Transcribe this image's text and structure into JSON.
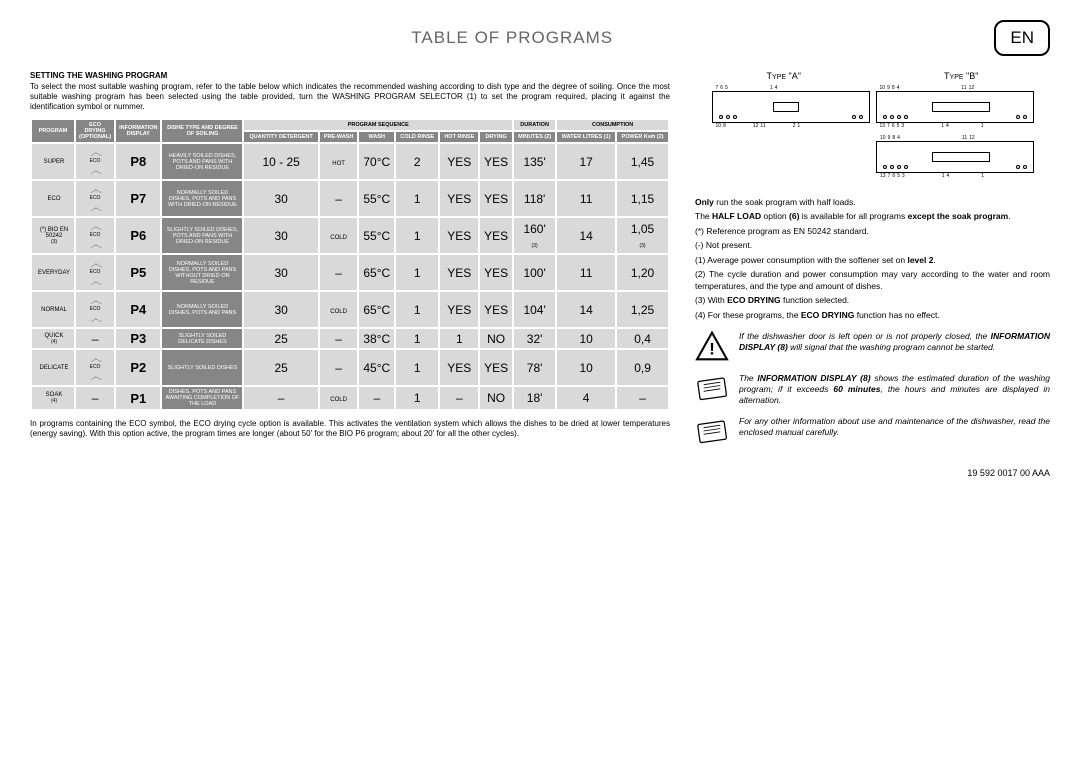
{
  "header": {
    "title": "TABLE OF PROGRAMS",
    "language": "EN"
  },
  "intro": {
    "subhead": "SETTING THE WASHING PROGRAM",
    "text": "To select the most suitable washing program, refer to the table below which indicates the recommended washing according to dish type and the degree of soiling. Once the most suitable washing program has been selected using the table provided, turn the WASHING PROGRAM SELECTOR (1) to set the program required, placing it against the identification symbol or nummer."
  },
  "table": {
    "headers": {
      "program": "PROGRAM",
      "eco_drying": "ECO DRYING (OPTIONAL)",
      "info_display": "INFORMATION DISPLAY",
      "dish_type": "DISHE TYPE AND DEGREE OF SOILING",
      "program_sequence": "PROGRAM SEQUENCE",
      "quantity_detergent": "QUANTITY DETERGENT",
      "prewash": "PRE-WASH",
      "wash": "WASH",
      "cold_rinse": "COLD RINSE",
      "hot_rinse": "HOT RINSE",
      "drying": "DRYING",
      "duration": "DURATION",
      "minutes": "MINUTES (2)",
      "consumption": "CONSUMPTION",
      "water": "WATER LITRES (1)",
      "power": "POWER Kwh (2)"
    },
    "rows": [
      {
        "program": "SUPER",
        "eco": true,
        "info": "P8",
        "dish": "HEAVILY SOILED DISHES, POTS AND PANS WITH DRIED-ON RESIDUE",
        "detergent": "10 - 25",
        "prewash": "HOT",
        "wash": "70°C",
        "cold": "2",
        "hot": "YES",
        "drying": "YES",
        "minutes": "135'",
        "water": "17",
        "power": "1,45"
      },
      {
        "program": "ECO",
        "eco": true,
        "info": "P7",
        "dish": "NORMALLY SOILED DISHES, POTS AND PANS WITH DRIED-ON RESIDUE",
        "detergent": "30",
        "prewash": "–",
        "wash": "55°C",
        "cold": "1",
        "hot": "YES",
        "drying": "YES",
        "minutes": "118'",
        "water": "11",
        "power": "1,15"
      },
      {
        "program": "(*) BIO EN 50242 (3)",
        "eco": true,
        "info": "P6",
        "dish": "SLIGHTLY SOILED DISHES, POTS AND PANS WITH DRIED-ON RESIDUE",
        "detergent": "30",
        "prewash": "COLD",
        "wash": "55°C",
        "cold": "1",
        "hot": "YES",
        "drying": "YES",
        "minutes": "160' (3)",
        "water": "14",
        "power": "1,05 (3)"
      },
      {
        "program": "EVERYDAY",
        "eco": true,
        "info": "P5",
        "dish": "NORMALLY SOILED DISHES, POTS AND PANS WITHOUT DRIED-ON RESIDUE",
        "detergent": "30",
        "prewash": "–",
        "wash": "65°C",
        "cold": "1",
        "hot": "YES",
        "drying": "YES",
        "minutes": "100'",
        "water": "11",
        "power": "1,20"
      },
      {
        "program": "NORMAL",
        "eco": true,
        "info": "P4",
        "dish": "NORMALLY SOILED DISHES, POTS AND PANS",
        "detergent": "30",
        "prewash": "COLD",
        "wash": "65°C",
        "cold": "1",
        "hot": "YES",
        "drying": "YES",
        "minutes": "104'",
        "water": "14",
        "power": "1,25"
      },
      {
        "program": "QUICK (4)",
        "eco": false,
        "info": "P3",
        "dish": "SLIGHTLY SOILED DELICATE DISHES",
        "detergent": "25",
        "prewash": "–",
        "wash": "38°C",
        "cold": "1",
        "hot": "1",
        "drying": "NO",
        "minutes": "32'",
        "water": "10",
        "power": "0,4"
      },
      {
        "program": "DELICATE",
        "eco": true,
        "info": "P2",
        "dish": "SLIGHTLY SOILED DISHES",
        "detergent": "25",
        "prewash": "–",
        "wash": "45°C",
        "cold": "1",
        "hot": "YES",
        "drying": "YES",
        "minutes": "78'",
        "water": "10",
        "power": "0,9"
      },
      {
        "program": "SOAK (4)",
        "eco": false,
        "info": "P1",
        "dish": "DISHES, POTS AND PANS AWAITING COMPLETION OF THE LOAD",
        "detergent": "–",
        "prewash": "COLD",
        "wash": "–",
        "cold": "1",
        "hot": "–",
        "drying": "NO",
        "minutes": "18'",
        "water": "4",
        "power": "–"
      }
    ]
  },
  "footnote": "In programs containing the ECO symbol, the ECO drying cycle option is available. This activates the ventilation system which allows the dishes to be dried at lower temperatures (energy saving). With this option active, the program times are longer (about 50' for the BIO P6 program; about 20' for all the other cycles).",
  "right": {
    "type_a": "TYPE \"A\"",
    "type_b": "TYPE \"B\"",
    "notes": {
      "only_line_pre": "Only",
      "only_line": " run the soak program with half loads.",
      "half_load": "The HALF LOAD option (6) is available for all programs except the soak program.",
      "ref": "(*) Reference program as EN 50242 standard.",
      "not_present": "(-) Not present.",
      "n1": "(1) Average power consumption with the softener set on level 2.",
      "n2": "(2) The cycle duration and power consumption may vary according to the water and room temperatures, and the type and amount of dishes.",
      "n3": "(3) With ECO DRYING function selected.",
      "n4": "(4) For these programs, the ECO DRYING function has no effect."
    },
    "warn": "If the dishwasher door is left open or is not properly closed, the INFORMATION DISPLAY (8) will signal that the washing program cannot be started.",
    "info_disp": "The INFORMATION DISPLAY (8) shows the estimated duration of the washing program; if it exceeds 60 minutes, the hours and minutes are displayed in alternation.",
    "manual": "For any other information about use and maintenance of the dishwasher, read the enclosed manual carefully.",
    "docref": "19 592 0017 00 AAA"
  },
  "colors": {
    "header_grey": "#868686",
    "cell_light": "#d9d9d9",
    "border": "#ffffff"
  }
}
